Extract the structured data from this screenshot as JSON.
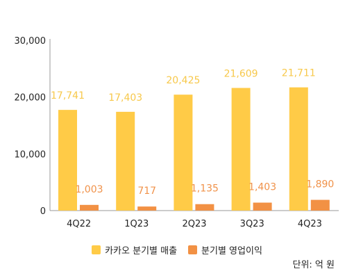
{
  "chart_data": {
    "type": "bar",
    "categories": [
      "4Q22",
      "1Q23",
      "2Q23",
      "3Q23",
      "4Q23"
    ],
    "series": [
      {
        "name": "카카오 분기별 매출",
        "values": [
          17741,
          17403,
          20425,
          21609,
          21711
        ],
        "color": "#FFCB47"
      },
      {
        "name": "분기별 영업이익",
        "values": [
          1003,
          717,
          1135,
          1403,
          1890
        ],
        "color": "#F29144"
      }
    ],
    "data_labels": [
      [
        "17,741",
        "17,403",
        "20,425",
        "21,609",
        "21,711"
      ],
      [
        "1,003",
        "717",
        "1,135",
        "1,403",
        "1,890"
      ]
    ],
    "label_colors": [
      "#F7C84A",
      "#F0924A"
    ],
    "yticks": [
      0,
      10000,
      20000,
      30000
    ],
    "ytick_labels": [
      "0",
      "10,000",
      "20,000",
      "30,000"
    ],
    "ylim": [
      0,
      30000
    ],
    "grid": false,
    "legend_position": "bottom",
    "unit_note": "단위: 억 원"
  }
}
